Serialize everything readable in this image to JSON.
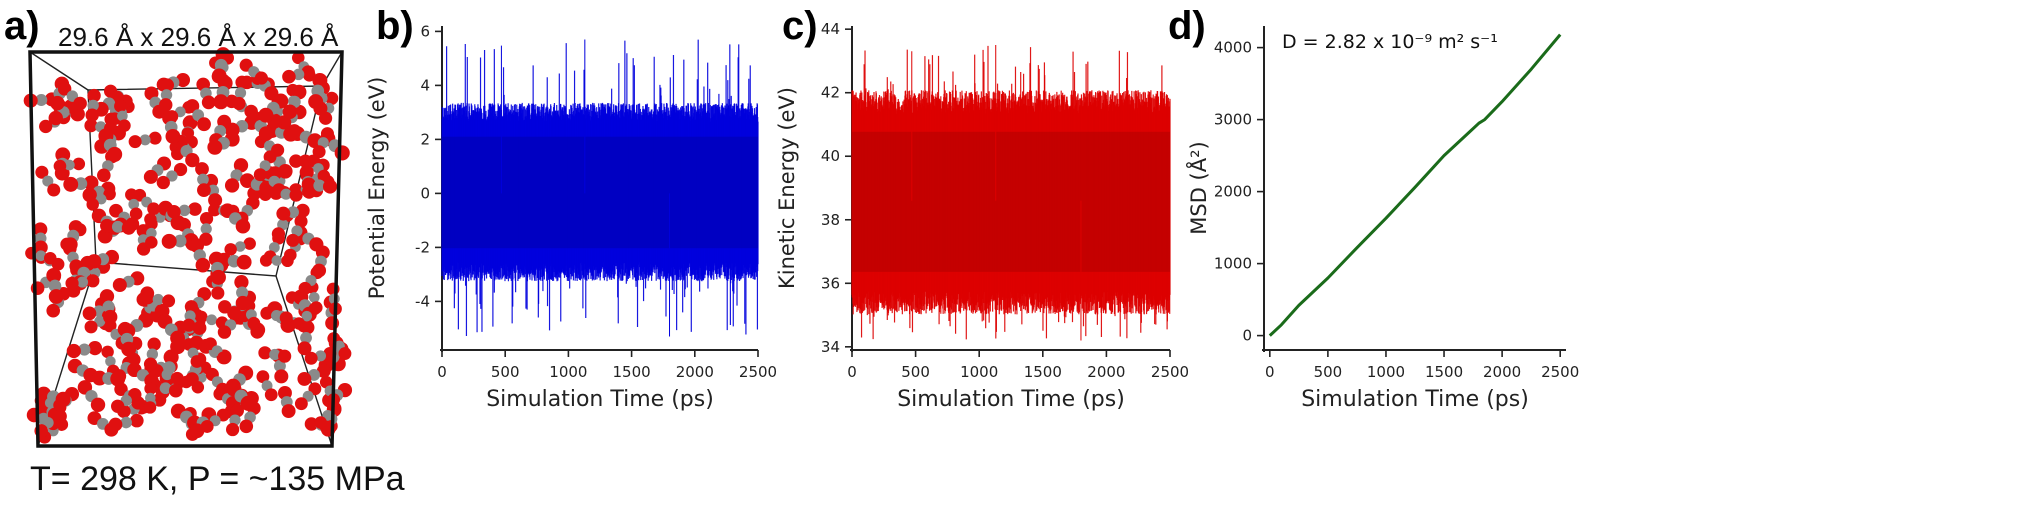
{
  "panel_labels": [
    "a)",
    "b)",
    "c)",
    "d)"
  ],
  "panel_a": {
    "box_dimensions": "29.6 Å x 29.6 Å x 29.6 Å",
    "conditions": "T= 298 K, P = ~135 MPa"
  },
  "colors": {
    "potential": "#0000dd",
    "kinetic": "#dd0000",
    "msd": "#1a6b1a",
    "atom_o": "#e01010",
    "atom_c": "#8a8a8a"
  },
  "chart_data": [
    {
      "type": "line",
      "panel": "b)",
      "xlabel": "Simulation Time (ps)",
      "ylabel": "Potential Energy (eV)",
      "xlim": [
        0,
        2500
      ],
      "ylim": [
        -5.8,
        6.2
      ],
      "xticks": [
        0,
        500,
        1000,
        1500,
        2000,
        2500
      ],
      "yticks": [
        -4,
        -2,
        0,
        2,
        4,
        6
      ],
      "series": [
        {
          "color": "#0000dd",
          "mean": 0.0,
          "core_low": -2.9,
          "core_high": 3.0,
          "min": -5.3,
          "max": 5.7
        }
      ]
    },
    {
      "type": "line",
      "panel": "c)",
      "xlabel": "Simulation Time (ps)",
      "ylabel": "Kinetic Energy (eV)",
      "xlim": [
        0,
        2500
      ],
      "ylim": [
        33.9,
        44.1
      ],
      "xticks": [
        0,
        500,
        1000,
        1500,
        2000,
        2500
      ],
      "yticks": [
        34,
        36,
        38,
        40,
        42,
        44
      ],
      "series": [
        {
          "color": "#dd0000",
          "mean": 38.6,
          "core_low": 35.4,
          "core_high": 41.7,
          "min": 34.2,
          "max": 43.5
        }
      ]
    },
    {
      "type": "line",
      "panel": "d)",
      "xlabel": "Simulation Time (ps)",
      "ylabel": "MSD (Å²)",
      "annotation": "D = 2.82 x 10⁻⁹ m² s⁻¹",
      "xlim": [
        -50,
        2550
      ],
      "ylim": [
        -200,
        4300
      ],
      "xticks": [
        0,
        500,
        1000,
        1500,
        2000,
        2500
      ],
      "yticks": [
        0,
        1000,
        2000,
        3000,
        4000
      ],
      "series": [
        {
          "color": "#1a6b1a",
          "x": [
            0,
            100,
            250,
            500,
            750,
            1000,
            1250,
            1500,
            1700,
            1800,
            1850,
            2000,
            2250,
            2500
          ],
          "y": [
            0,
            150,
            420,
            800,
            1220,
            1630,
            2060,
            2500,
            2800,
            2950,
            3000,
            3250,
            3700,
            4180
          ]
        }
      ]
    }
  ]
}
